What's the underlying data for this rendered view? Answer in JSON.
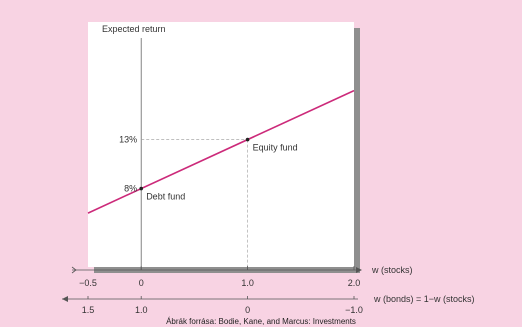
{
  "chart_data": {
    "type": "line",
    "ylabel": "Expected return",
    "x_axis_primary": {
      "label": "w (stocks)",
      "range": [
        -0.5,
        2.0
      ],
      "ticks": [
        {
          "value": -0.5,
          "label": "−0.5"
        },
        {
          "value": 0,
          "label": "0"
        },
        {
          "value": 1.0,
          "label": "1.0"
        },
        {
          "value": 2.0,
          "label": "2.0"
        }
      ]
    },
    "x_axis_secondary": {
      "label": "w (bonds) = 1−w (stocks)",
      "ticks": [
        {
          "value": -0.5,
          "label": "1.5"
        },
        {
          "value": 0,
          "label": "1.0"
        },
        {
          "value": 1.0,
          "label": "0"
        },
        {
          "value": 2.0,
          "label": "−1.0"
        }
      ]
    },
    "y_ticks": [
      {
        "value": 8,
        "label": "8%"
      },
      {
        "value": 13,
        "label": "13%"
      }
    ],
    "ylim": [
      0,
      25
    ],
    "line": {
      "x": [
        -0.5,
        2.0
      ],
      "y": [
        5.5,
        18.0
      ],
      "color": "#cc2a7a"
    },
    "points": [
      {
        "x": 0,
        "y": 8,
        "label": "Debt fund"
      },
      {
        "x": 1.0,
        "y": 13,
        "label": "Equity fund"
      }
    ],
    "grid": false
  },
  "source_caption": "Ábrák forrása: Bodie, Kane, and Marcus: Investments"
}
